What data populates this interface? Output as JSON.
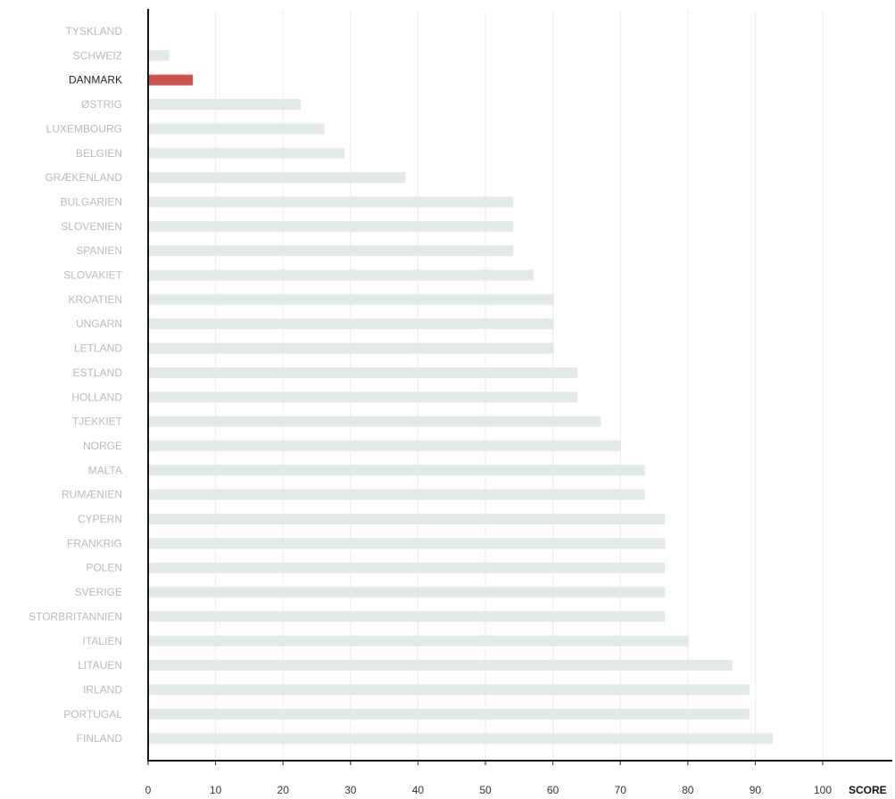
{
  "chart_data": {
    "type": "bar",
    "orientation": "horizontal",
    "xlabel": "SCORE",
    "xlim": [
      0,
      110
    ],
    "xticks": [
      0,
      10,
      20,
      30,
      40,
      50,
      60,
      70,
      80,
      90,
      100
    ],
    "grid": true,
    "highlight": "DANMARK",
    "colors": {
      "bar": "#e3ebe9",
      "highlight_bar": "#d0514b",
      "label": "#b6bcbc",
      "highlight_label": "#222222",
      "axis": "#111111",
      "grid": "#ececec"
    },
    "categories": [
      "TYSKLAND",
      "SCHWEIZ",
      "DANMARK",
      "ØSTRIG",
      "LUXEMBOURG",
      "BELGIEN",
      "GRÆKENLAND",
      "BULGARIEN",
      "SLOVENIEN",
      "SPANIEN",
      "SLOVAKIET",
      "KROATIEN",
      "UNGARN",
      "LETLAND",
      "ESTLAND",
      "HOLLAND",
      "TJEKKIET",
      "NORGE",
      "MALTA",
      "RUMÆNIEN",
      "CYPERN",
      "FRANKRIG",
      "POLEN",
      "SVERIGE",
      "STORBRITANNIEN",
      "ITALIEN",
      "LITAUEN",
      "IRLAND",
      "PORTUGAL",
      "FINLAND"
    ],
    "values": [
      0,
      3,
      6.5,
      22.5,
      26,
      29,
      38,
      54,
      54,
      54,
      57,
      60,
      60,
      60,
      63.5,
      63.5,
      67,
      70,
      73.5,
      73.5,
      76.5,
      76.5,
      76.5,
      76.5,
      76.5,
      80,
      86.5,
      89,
      89,
      92.5
    ]
  }
}
